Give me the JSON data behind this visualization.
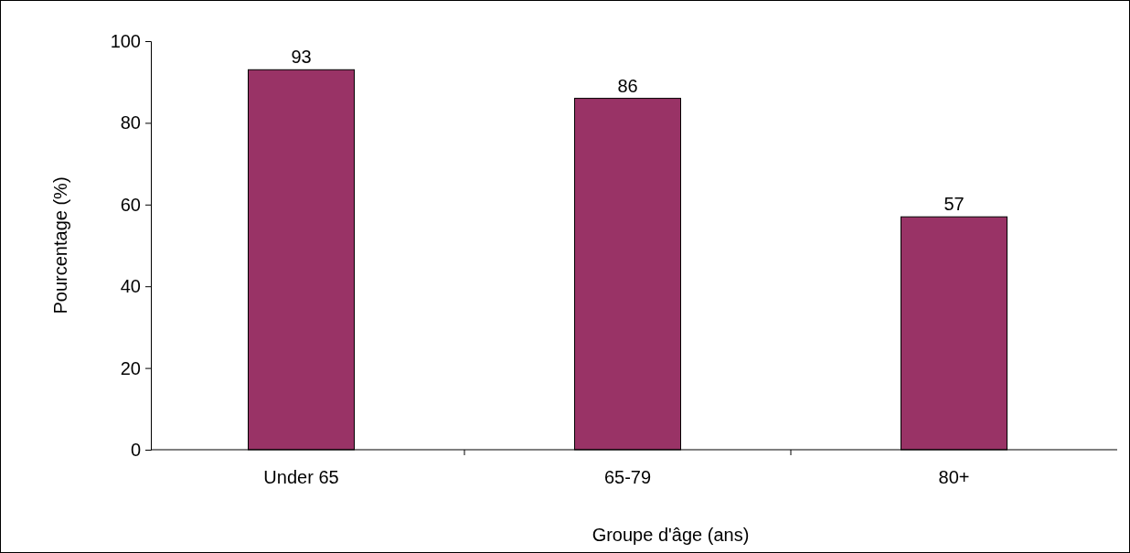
{
  "chart_data": {
    "type": "bar",
    "xlabel": "Groupe d'âge (ans)",
    "ylabel": "Pourcentage (%)",
    "categories": [
      "Under 65",
      "65-79",
      "80+"
    ],
    "values": [
      93,
      86,
      57
    ],
    "color": "#993366",
    "ylim": [
      0,
      100
    ],
    "yticks": [
      0,
      20,
      40,
      60,
      80,
      100
    ],
    "grid": false,
    "data_labels": true
  }
}
